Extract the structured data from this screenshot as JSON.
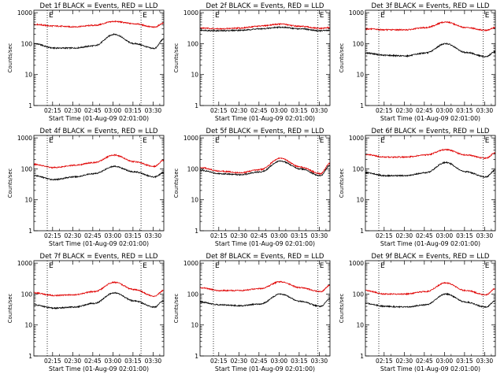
{
  "figure": {
    "xlabel": "Start Time (01-Aug-09 02:01:00)",
    "ylabel": "Counts/sec",
    "e_label": "E",
    "x_ticks": [
      "02:15",
      "02:30",
      "02:45",
      "03:00",
      "03:15",
      "03:30"
    ],
    "y_ticks": [
      "1",
      "10",
      "100",
      "1000"
    ],
    "colors": {
      "events": "#000000",
      "lld": "#e00000",
      "axes": "#000000"
    }
  },
  "chart_data": [
    {
      "type": "line",
      "title": "Det 1f BLACK = Events, RED = LLD",
      "x_minutes_after_0201": [
        0,
        15,
        30,
        45,
        60,
        75,
        90,
        97
      ],
      "series": [
        {
          "color": "black",
          "values": [
            100,
            72,
            72,
            85,
            200,
            100,
            70,
            140
          ]
        },
        {
          "color": "red",
          "values": [
            420,
            370,
            350,
            390,
            520,
            440,
            340,
            460
          ]
        }
      ],
      "markers_minutes": [
        10,
        80
      ],
      "ylim": [
        1,
        1200
      ],
      "yscale": "log"
    },
    {
      "type": "line",
      "title": "Det 2f BLACK = Events, RED = LLD",
      "x_minutes_after_0201": [
        0,
        15,
        30,
        45,
        60,
        75,
        90,
        97
      ],
      "series": [
        {
          "color": "black",
          "values": [
            270,
            260,
            270,
            300,
            340,
            300,
            260,
            270
          ]
        },
        {
          "color": "red",
          "values": [
            320,
            300,
            320,
            370,
            430,
            360,
            310,
            330
          ]
        }
      ],
      "markers_minutes": [
        10,
        88
      ],
      "ylim": [
        1,
        1200
      ],
      "yscale": "log"
    },
    {
      "type": "line",
      "title": "Det 3f BLACK = Events, RED = LLD",
      "x_minutes_after_0201": [
        0,
        15,
        30,
        45,
        60,
        75,
        90,
        97
      ],
      "series": [
        {
          "color": "black",
          "values": [
            50,
            42,
            40,
            50,
            100,
            52,
            38,
            55
          ]
        },
        {
          "color": "red",
          "values": [
            300,
            280,
            280,
            330,
            500,
            330,
            270,
            330
          ]
        }
      ],
      "markers_minutes": [
        10,
        88
      ],
      "ylim": [
        1,
        1200
      ],
      "yscale": "log"
    },
    {
      "type": "line",
      "title": "Det 4f BLACK = Events, RED = LLD",
      "x_minutes_after_0201": [
        0,
        15,
        30,
        45,
        60,
        75,
        90,
        97
      ],
      "series": [
        {
          "color": "black",
          "values": [
            60,
            45,
            55,
            70,
            120,
            80,
            55,
            75
          ]
        },
        {
          "color": "red",
          "values": [
            140,
            110,
            130,
            160,
            280,
            170,
            120,
            190
          ]
        }
      ],
      "markers_minutes": [
        10,
        80
      ],
      "ylim": [
        1,
        1200
      ],
      "yscale": "log"
    },
    {
      "type": "line",
      "title": "Det 5f BLACK = Events, RED = LLD",
      "x_minutes_after_0201": [
        0,
        15,
        30,
        45,
        60,
        75,
        90,
        97
      ],
      "series": [
        {
          "color": "black",
          "values": [
            90,
            70,
            65,
            80,
            180,
            100,
            60,
            130
          ]
        },
        {
          "color": "red",
          "values": [
            110,
            85,
            75,
            95,
            220,
            115,
            70,
            150
          ]
        }
      ],
      "markers_minutes": [
        10,
        88
      ],
      "ylim": [
        1,
        1200
      ],
      "yscale": "log"
    },
    {
      "type": "line",
      "title": "Det 6f BLACK = Events, RED = LLD",
      "x_minutes_after_0201": [
        0,
        15,
        30,
        45,
        60,
        75,
        90,
        97
      ],
      "series": [
        {
          "color": "black",
          "values": [
            75,
            60,
            60,
            75,
            160,
            80,
            55,
            90
          ]
        },
        {
          "color": "red",
          "values": [
            290,
            240,
            240,
            280,
            420,
            280,
            220,
            330
          ]
        }
      ],
      "markers_minutes": [
        10,
        88
      ],
      "ylim": [
        1,
        1200
      ],
      "yscale": "log"
    },
    {
      "type": "line",
      "title": "Det 7f BLACK = Events, RED = LLD",
      "x_minutes_after_0201": [
        0,
        15,
        30,
        45,
        60,
        75,
        90,
        97
      ],
      "series": [
        {
          "color": "black",
          "values": [
            45,
            35,
            38,
            50,
            110,
            60,
            38,
            60
          ]
        },
        {
          "color": "red",
          "values": [
            110,
            90,
            95,
            120,
            240,
            140,
            85,
            130
          ]
        }
      ],
      "markers_minutes": [
        10,
        80
      ],
      "ylim": [
        1,
        1200
      ],
      "yscale": "log"
    },
    {
      "type": "line",
      "title": "Det 8f BLACK = Events, RED = LLD",
      "x_minutes_after_0201": [
        0,
        15,
        30,
        45,
        60,
        75,
        90,
        97
      ],
      "series": [
        {
          "color": "black",
          "values": [
            55,
            45,
            42,
            48,
            100,
            58,
            40,
            70
          ]
        },
        {
          "color": "red",
          "values": [
            160,
            130,
            130,
            150,
            250,
            160,
            120,
            190
          ]
        }
      ],
      "markers_minutes": [
        10,
        88
      ],
      "ylim": [
        1,
        1200
      ],
      "yscale": "log"
    },
    {
      "type": "line",
      "title": "Det 9f BLACK = Events, RED = LLD",
      "x_minutes_after_0201": [
        0,
        15,
        30,
        45,
        60,
        75,
        90,
        97
      ],
      "series": [
        {
          "color": "black",
          "values": [
            50,
            40,
            38,
            45,
            100,
            55,
            38,
            60
          ]
        },
        {
          "color": "red",
          "values": [
            130,
            100,
            100,
            120,
            230,
            130,
            95,
            150
          ]
        }
      ],
      "markers_minutes": [
        10,
        88
      ],
      "ylim": [
        1,
        1200
      ],
      "yscale": "log"
    }
  ]
}
